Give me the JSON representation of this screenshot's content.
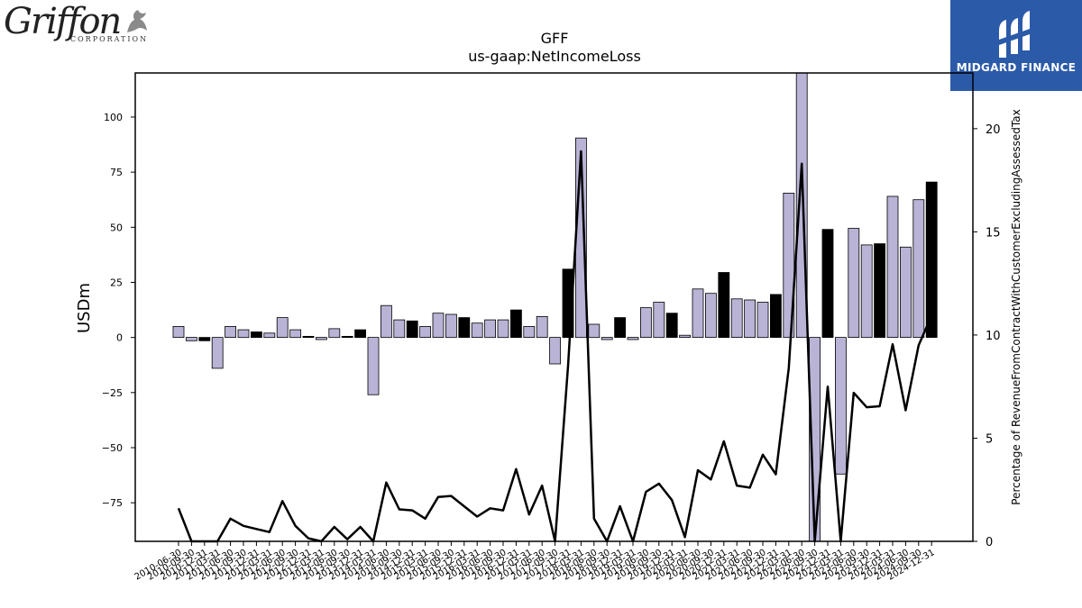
{
  "logos": {
    "left_name": "Griffon",
    "left_sub": "CORPORATION",
    "right_name": "MIDGARD FINANCE"
  },
  "colors": {
    "bar_light": "#b9b3d6",
    "bar_dark": "#000000",
    "line": "#000000",
    "brand_blue": "#2b5aa8"
  },
  "chart_data": {
    "type": "bar",
    "title": "GFF",
    "subtitle": "us-gaap:NetIncomeLoss",
    "ylabel": "USDm",
    "y2label": "Percentage of RevenueFromContractWithCustomerExcludingAssessedTax",
    "ylim": [
      -92.5,
      120
    ],
    "y2lim": [
      0,
      22.7
    ],
    "yticks": [
      -75,
      -50,
      -25,
      0,
      25,
      50,
      75,
      100
    ],
    "y2ticks": [
      0,
      5,
      10,
      15,
      20
    ],
    "categories": [
      "2010-06-30",
      "2010-09-30",
      "2010-12-31",
      "2011-03-31",
      "2011-06-30",
      "2011-09-30",
      "2011-12-31",
      "2012-03-31",
      "2012-06-30",
      "2012-09-30",
      "2012-12-31",
      "2013-03-31",
      "2013-06-30",
      "2013-09-30",
      "2013-12-31",
      "2014-03-31",
      "2014-06-30",
      "2014-09-30",
      "2014-12-31",
      "2015-03-31",
      "2015-06-30",
      "2015-09-30",
      "2015-12-31",
      "2016-03-31",
      "2016-06-30",
      "2016-09-30",
      "2016-12-31",
      "2017-03-31",
      "2017-06-30",
      "2017-09-30",
      "2017-12-31",
      "2018-03-31",
      "2018-06-30",
      "2018-09-30",
      "2018-12-31",
      "2019-03-31",
      "2019-06-30",
      "2019-09-30",
      "2019-12-31",
      "2020-03-31",
      "2020-06-30",
      "2020-09-30",
      "2020-12-31",
      "2021-03-31",
      "2021-06-30",
      "2021-09-30",
      "2021-12-31",
      "2022-03-31",
      "2022-06-30",
      "2022-09-30",
      "2022-12-31",
      "2023-03-31",
      "2023-06-30",
      "2023-09-30",
      "2023-12-31",
      "2024-03-31",
      "2024-06-30",
      "2024-09-30",
      "2024-12-31"
    ],
    "xtick_labels": [
      "2010-06-30",
      "2010-09-30",
      "2010-12-31",
      "2011-03-31",
      "2011-06-30",
      "2011-09-30",
      "2011-12-31",
      "2012-03-31",
      "2012-06-30",
      "2012-09-30",
      "2012-12-31",
      "2013-03-31",
      "2013-06-30",
      "2013-09-30",
      "2013-12-31",
      "2014-03-31",
      "2014-06-30",
      "2014-09-30",
      "2014-12-31",
      "2015-03-31",
      "2015-06-30",
      "2015-09-30",
      "2015-12-31",
      "2016-03-31",
      "2016-06-30",
      "2016-09-30",
      "2016-12-31",
      "2017-03-31",
      "2017-06-30",
      "2017-09-30",
      "2017-12-31",
      "2018-03-31",
      "2018-06-30",
      "2018-09-30",
      "2018-12-31",
      "2019-03-31",
      "2019-06-30",
      "2019-09-30",
      "2019-12-31",
      "2020-03-31",
      "2020-06-30",
      "2020-09-30",
      "2020-12-31",
      "2021-03-31",
      "2021-06-30",
      "2021-09-30",
      "2021-12-31",
      "2022-03-31",
      "2022-06-30",
      "2022-09-30",
      "2022-12-31",
      "2023-03-31",
      "2023-06-30",
      "2023-09-30",
      "2023-12-31",
      "2024-03-31",
      "2024-06-30",
      "2024-09-30",
      "2024-12-31"
    ],
    "bars": [
      {
        "v": 5,
        "dark": false
      },
      {
        "v": -1.5,
        "dark": false
      },
      {
        "v": -1.5,
        "dark": true
      },
      {
        "v": -14,
        "dark": false
      },
      {
        "v": 5,
        "dark": false
      },
      {
        "v": 3.5,
        "dark": false
      },
      {
        "v": 2.5,
        "dark": true
      },
      {
        "v": 2,
        "dark": false
      },
      {
        "v": 9,
        "dark": false
      },
      {
        "v": 3.5,
        "dark": false
      },
      {
        "v": 0.5,
        "dark": true
      },
      {
        "v": -1,
        "dark": false
      },
      {
        "v": 4,
        "dark": false
      },
      {
        "v": 0.5,
        "dark": true
      },
      {
        "v": 3.5,
        "dark": true
      },
      {
        "v": -26,
        "dark": false
      },
      {
        "v": 14.5,
        "dark": false
      },
      {
        "v": 8,
        "dark": false
      },
      {
        "v": 7.5,
        "dark": true
      },
      {
        "v": 5,
        "dark": false
      },
      {
        "v": 11,
        "dark": false
      },
      {
        "v": 10.5,
        "dark": false
      },
      {
        "v": 9,
        "dark": true
      },
      {
        "v": 6.5,
        "dark": false
      },
      {
        "v": 8,
        "dark": false
      },
      {
        "v": 8,
        "dark": false
      },
      {
        "v": 12.5,
        "dark": true
      },
      {
        "v": 5,
        "dark": false
      },
      {
        "v": 9.5,
        "dark": false
      },
      {
        "v": -12,
        "dark": false
      },
      {
        "v": 31,
        "dark": true
      },
      {
        "v": 90.5,
        "dark": false
      },
      {
        "v": 6,
        "dark": false
      },
      {
        "v": -1,
        "dark": false
      },
      {
        "v": 9,
        "dark": true
      },
      {
        "v": -1,
        "dark": false
      },
      {
        "v": 13.5,
        "dark": false
      },
      {
        "v": 16,
        "dark": false
      },
      {
        "v": 11,
        "dark": true
      },
      {
        "v": 1,
        "dark": false
      },
      {
        "v": 22,
        "dark": false
      },
      {
        "v": 20,
        "dark": false
      },
      {
        "v": 29.5,
        "dark": true
      },
      {
        "v": 17.5,
        "dark": false
      },
      {
        "v": 17,
        "dark": false
      },
      {
        "v": 16,
        "dark": false
      },
      {
        "v": 19.5,
        "dark": true
      },
      {
        "v": 65.5,
        "dark": false
      },
      {
        "v": 125,
        "dark": false
      },
      {
        "v": -125,
        "dark": false
      },
      {
        "v": 49,
        "dark": true
      },
      {
        "v": -62,
        "dark": false
      },
      {
        "v": 49.5,
        "dark": false
      },
      {
        "v": 42,
        "dark": false
      },
      {
        "v": 42.5,
        "dark": true
      },
      {
        "v": 64,
        "dark": false
      },
      {
        "v": 41,
        "dark": false
      },
      {
        "v": 62.5,
        "dark": false
      },
      {
        "v": 70.5,
        "dark": true
      }
    ],
    "line": [
      1.6,
      -0.8,
      -0.8,
      -3,
      1.1,
      0.75,
      0.6,
      0.45,
      1.95,
      0.75,
      0.15,
      -0.25,
      0.7,
      0.1,
      0.7,
      -6,
      2.85,
      1.55,
      1.5,
      1.1,
      2.15,
      2.2,
      1.7,
      1.2,
      1.6,
      1.5,
      3.5,
      1.3,
      2.7,
      -2.5,
      8.5,
      18.9,
      1.1,
      -0.3,
      1.7,
      -0.3,
      2.4,
      2.8,
      2,
      0.2,
      3.45,
      3,
      4.85,
      2.7,
      2.6,
      4.2,
      3.25,
      8.4,
      18.3,
      -26,
      7.5,
      -14,
      7.2,
      6.5,
      6.55,
      9.55,
      6.35,
      9.5,
      10.95
    ]
  }
}
